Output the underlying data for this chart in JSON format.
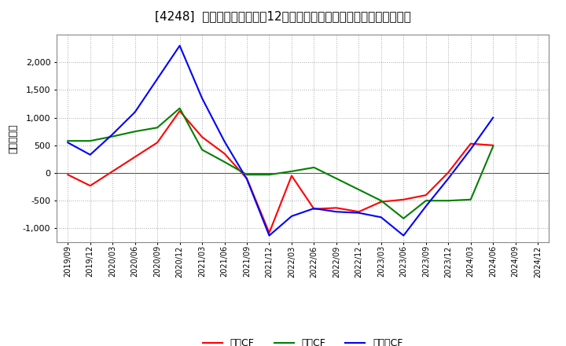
{
  "title": "[4248]  キャッシュフローの12か月移動合計の対前年同期増減額の推移",
  "ylabel": "（百万円）",
  "background_color": "#ffffff",
  "plot_bg_color": "#ffffff",
  "grid_color": "#aaaaaa",
  "x_labels": [
    "2019/09",
    "2019/12",
    "2020/03",
    "2020/06",
    "2020/09",
    "2020/12",
    "2021/03",
    "2021/06",
    "2021/09",
    "2021/12",
    "2022/03",
    "2022/06",
    "2022/09",
    "2022/12",
    "2023/03",
    "2023/06",
    "2023/09",
    "2023/12",
    "2024/03",
    "2024/06",
    "2024/09",
    "2024/12"
  ],
  "operating_cf": [
    -30,
    -230,
    null,
    null,
    550,
    1120,
    650,
    350,
    -100,
    -1080,
    -50,
    -650,
    -630,
    -700,
    -520,
    -480,
    -400,
    10,
    530,
    500,
    null,
    null
  ],
  "investing_cf": [
    580,
    580,
    660,
    750,
    820,
    1170,
    420,
    200,
    -30,
    -30,
    30,
    100,
    -100,
    -300,
    -500,
    -820,
    -500,
    -500,
    -480,
    480,
    null,
    null
  ],
  "free_cf": [
    550,
    330,
    700,
    1100,
    1700,
    2300,
    1350,
    570,
    -110,
    -1130,
    -780,
    -640,
    -700,
    -720,
    -800,
    -1130,
    -600,
    -100,
    430,
    1000,
    null,
    null
  ],
  "operating_color": "#ff0000",
  "investing_color": "#008000",
  "free_color": "#0000ff",
  "ylim": [
    -1250,
    2500
  ],
  "yticks": [
    -1000,
    -500,
    0,
    500,
    1000,
    1500,
    2000
  ],
  "legend_labels": [
    "営業CF",
    "投資CF",
    "フリーCF"
  ]
}
